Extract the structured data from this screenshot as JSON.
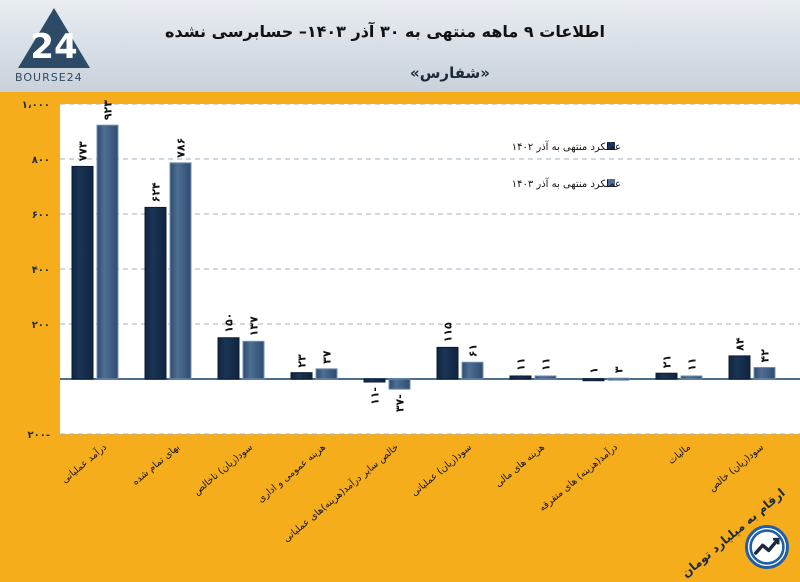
{
  "header": {
    "logo_text": "BOURSE24",
    "title": "اطلاعات ۹ ماهه منتهی به ۳۰ آذر ۱۴۰۳– حسابرسی نشده",
    "subtitle": "«شفارس»"
  },
  "footnote": "ارقام به میلیارد تومان",
  "colors": {
    "background": "#f5ad1c",
    "plot_area": "#ffffff",
    "series_1402": "#1b3556",
    "series_1403": "#4e6e93",
    "grid": "#9db3c9"
  },
  "icons": [
    "logo-24-icon",
    "trend-badge-icon"
  ],
  "chart_data": {
    "type": "bar",
    "ylim": [
      -200,
      1000
    ],
    "yticks": [
      "۲۰۰-",
      "۲۰۰",
      "۴۰۰",
      "۶۰۰",
      "۸۰۰",
      "۱،۰۰۰"
    ],
    "ytick_values": [
      -200,
      200,
      400,
      600,
      800,
      1000
    ],
    "grid": true,
    "legend_position": "top-right",
    "categories": [
      "درآمد عملیاتی",
      "بهای تمام شده",
      "سود(زیان) ناخالص",
      "هزینه عمومی و اداری",
      "خالص سایر درآمد(هزینه)های عملیاتی",
      "سود(زیان) عملیاتی",
      "هزینه های مالی",
      "درآمد(هزینه) های متفرقه",
      "مالیات",
      "سود(زیان) خالص"
    ],
    "series": [
      {
        "name": "عملکرد منتهی به آذر ۱۴۰۲",
        "values": [
          773,
          624,
          150,
          23,
          -11,
          115,
          11,
          1,
          21,
          84
        ],
        "labels": [
          "۷۷۳",
          "۶۲۴",
          "۱۵۰",
          "۲۳",
          "۱۱-",
          "۱۱۵",
          "۱۱",
          "۱",
          "۲۱",
          "۸۴"
        ]
      },
      {
        "name": "عملکرد منتهی به آذر ۱۴۰۳",
        "values": [
          923,
          786,
          137,
          37,
          -37,
          61,
          11,
          3,
          11,
          42
        ],
        "labels": [
          "۹۲۳",
          "۷۸۶",
          "۱۳۷",
          "۳۷",
          "۳۷-",
          "۶۱",
          "۱۱",
          "۳",
          "۱۱",
          "۴۲"
        ]
      }
    ]
  }
}
